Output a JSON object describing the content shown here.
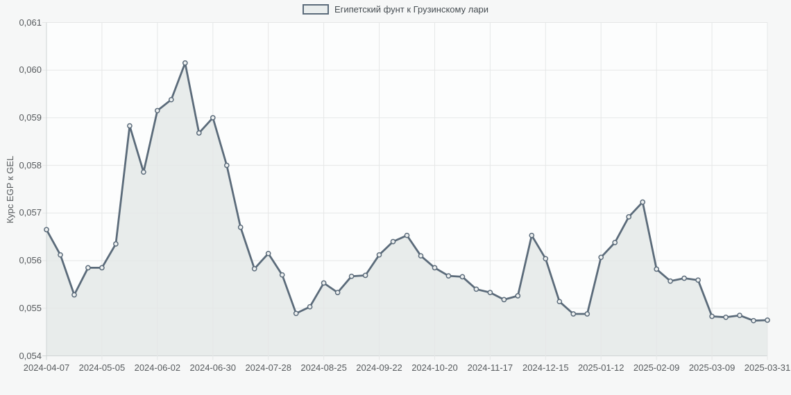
{
  "legend": {
    "label": "Египетский фунт к Грузинскому лари"
  },
  "y_axis": {
    "title": "Курс EGP к GEL",
    "tick_labels": [
      "0,061",
      "0,060",
      "0,059",
      "0,058",
      "0,057",
      "0,056",
      "0,055",
      "0,054"
    ]
  },
  "x_axis": {
    "tick_labels": [
      "2024-04-07",
      "2024-05-05",
      "2024-06-02",
      "2024-06-30",
      "2024-07-28",
      "2024-08-25",
      "2024-09-22",
      "2024-10-20",
      "2024-11-17",
      "2024-12-15",
      "2025-01-12",
      "2025-02-09",
      "2025-03-09",
      "2025-03-31"
    ]
  },
  "colors": {
    "line": "#5b6b7a",
    "marker_fill": "#eef1f1",
    "area_fill": "#e8eceb",
    "grid": "#e5e7e7",
    "axis": "#cfd4d4",
    "plot_bg": "#fcfdfd",
    "page_bg": "#f6f7f7",
    "label_text": "#55595c"
  },
  "chart_data": {
    "type": "area",
    "title": "",
    "series_name": "Египетский фунт к Грузинскому лари",
    "x": [
      "2024-04-07",
      "2024-04-14",
      "2024-04-21",
      "2024-04-28",
      "2024-05-05",
      "2024-05-12",
      "2024-05-19",
      "2024-05-26",
      "2024-06-02",
      "2024-06-09",
      "2024-06-16",
      "2024-06-23",
      "2024-06-30",
      "2024-07-07",
      "2024-07-14",
      "2024-07-21",
      "2024-07-28",
      "2024-08-04",
      "2024-08-11",
      "2024-08-18",
      "2024-08-25",
      "2024-09-01",
      "2024-09-08",
      "2024-09-15",
      "2024-09-22",
      "2024-09-29",
      "2024-10-06",
      "2024-10-13",
      "2024-10-20",
      "2024-10-27",
      "2024-11-03",
      "2024-11-10",
      "2024-11-17",
      "2024-11-24",
      "2024-12-01",
      "2024-12-08",
      "2024-12-15",
      "2024-12-22",
      "2024-12-29",
      "2025-01-05",
      "2025-01-12",
      "2025-01-19",
      "2025-01-26",
      "2025-02-02",
      "2025-02-09",
      "2025-02-16",
      "2025-02-23",
      "2025-03-02",
      "2025-03-09",
      "2025-03-16",
      "2025-03-23",
      "2025-03-30",
      "2025-03-31"
    ],
    "series": [
      {
        "name": "Египетский фунт к Грузинскому лари",
        "values": [
          0.05665,
          0.05612,
          0.05528,
          0.05585,
          0.05585,
          0.05635,
          0.05883,
          0.05786,
          0.05915,
          0.05938,
          0.06015,
          0.05868,
          0.059,
          0.058,
          0.0567,
          0.05583,
          0.05615,
          0.0557,
          0.05489,
          0.05503,
          0.05553,
          0.05533,
          0.05567,
          0.05569,
          0.05612,
          0.0564,
          0.05653,
          0.0561,
          0.05585,
          0.05568,
          0.05566,
          0.0554,
          0.05533,
          0.05518,
          0.05526,
          0.05653,
          0.05604,
          0.05514,
          0.05488,
          0.05488,
          0.05607,
          0.05638,
          0.05692,
          0.05723,
          0.05582,
          0.05557,
          0.05563,
          0.05559,
          0.05483,
          0.05481,
          0.05485,
          0.05474,
          0.05475
        ]
      }
    ],
    "xlabel": "",
    "ylabel": "Курс EGP к GEL",
    "ylim": [
      0.054,
      0.061
    ],
    "y_tick_step": 0.001,
    "x_tick_every": 4,
    "grid": true,
    "legend_position": "top-center",
    "marker": "circle"
  }
}
